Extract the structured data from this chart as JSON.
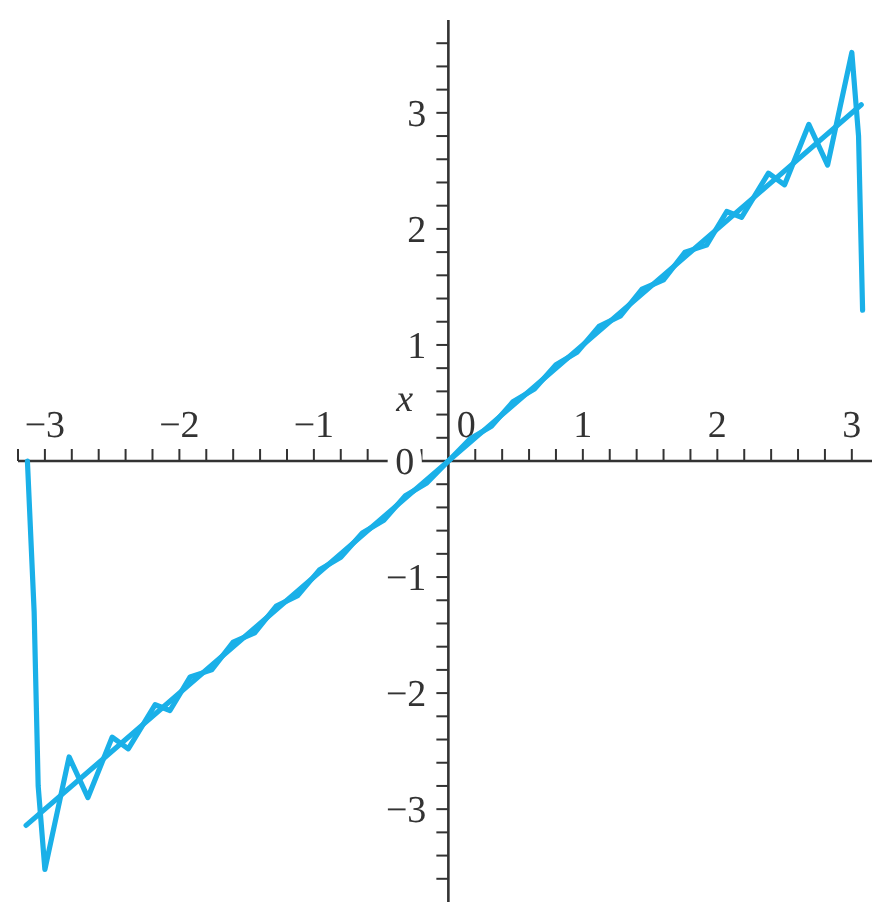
{
  "chart_data": {
    "type": "line",
    "xlabel": "x",
    "xlim": [
      -3.2,
      3.15
    ],
    "ylim": [
      -3.8,
      3.8
    ],
    "xticks": [
      {
        "value": -3.2,
        "label": null
      },
      {
        "value": -3,
        "label": "−3"
      },
      {
        "value": -2.8,
        "label": null
      },
      {
        "value": -2.6,
        "label": null
      },
      {
        "value": -2.4,
        "label": null
      },
      {
        "value": -2.2,
        "label": null
      },
      {
        "value": -2,
        "label": "−2"
      },
      {
        "value": -1.8,
        "label": null
      },
      {
        "value": -1.6,
        "label": null
      },
      {
        "value": -1.4,
        "label": null
      },
      {
        "value": -1.2,
        "label": null
      },
      {
        "value": -1,
        "label": "−1"
      },
      {
        "value": -0.8,
        "label": null
      },
      {
        "value": -0.6,
        "label": null
      },
      {
        "value": -0.4,
        "label": null
      },
      {
        "value": -0.2,
        "label": null
      },
      0,
      {
        "value": 0.2,
        "label": null
      },
      {
        "value": 0.4,
        "label": null
      },
      {
        "value": 0.6,
        "label": null
      },
      {
        "value": 0.8,
        "label": null
      },
      1,
      {
        "value": 1.2,
        "label": null
      },
      {
        "value": 1.4,
        "label": null
      },
      {
        "value": 1.6,
        "label": null
      },
      {
        "value": 1.8,
        "label": null
      },
      2,
      {
        "value": 2.2,
        "label": null
      },
      {
        "value": 2.4,
        "label": null
      },
      {
        "value": 2.6,
        "label": null
      },
      {
        "value": 2.8,
        "label": null
      },
      3
    ],
    "yticks": [
      {
        "value": -3.6,
        "label": null
      },
      {
        "value": -3.4,
        "label": null
      },
      {
        "value": -3.2,
        "label": null
      },
      {
        "value": -3,
        "label": "−3"
      },
      {
        "value": -2.8,
        "label": null
      },
      {
        "value": -2.6,
        "label": null
      },
      {
        "value": -2.4,
        "label": null
      },
      {
        "value": -2.2,
        "label": null
      },
      {
        "value": -2,
        "label": "−2"
      },
      {
        "value": -1.8,
        "label": null
      },
      {
        "value": -1.6,
        "label": null
      },
      {
        "value": -1.4,
        "label": null
      },
      {
        "value": -1.2,
        "label": null
      },
      {
        "value": -1,
        "label": "−1"
      },
      {
        "value": -0.8,
        "label": null
      },
      {
        "value": -0.6,
        "label": null
      },
      {
        "value": -0.4,
        "label": null
      },
      {
        "value": -0.2,
        "label": null
      },
      0,
      {
        "value": 0.2,
        "label": null
      },
      {
        "value": 0.4,
        "label": null
      },
      {
        "value": 0.6,
        "label": null
      },
      {
        "value": 0.8,
        "label": null
      },
      1,
      {
        "value": 1.2,
        "label": null
      },
      {
        "value": 1.4,
        "label": null
      },
      {
        "value": 1.6,
        "label": null
      },
      {
        "value": 1.8,
        "label": null
      },
      2,
      {
        "value": 2.2,
        "label": null
      },
      {
        "value": 2.4,
        "label": null
      },
      {
        "value": 2.6,
        "label": null
      },
      {
        "value": 2.8,
        "label": null
      },
      3,
      {
        "value": 3.2,
        "label": null
      },
      {
        "value": 3.4,
        "label": null
      },
      {
        "value": 3.6,
        "label": null
      }
    ],
    "grid": false,
    "marker": "none",
    "line_style": "solid",
    "series": [
      {
        "color": "#1ab0e8",
        "x": [
          -3.13,
          -3.08,
          -3.05,
          -3.0,
          -2.82,
          -2.68,
          -2.5,
          -2.38,
          -2.18,
          -2.07,
          -1.92,
          -1.76,
          -1.6,
          -1.44,
          -1.28,
          -1.12,
          -0.96,
          -0.8,
          -0.64,
          -0.48,
          -0.32,
          -0.16,
          0,
          0.16,
          0.32,
          0.48,
          0.64,
          0.8,
          0.96,
          1.12,
          1.28,
          1.44,
          1.6,
          1.76,
          1.92,
          2.07,
          2.18,
          2.38,
          2.5,
          2.68,
          2.82,
          3.0,
          3.05,
          3.08
        ],
        "values": [
          0,
          -1.3,
          -2.8,
          -3.52,
          -2.55,
          -2.9,
          -2.38,
          -2.48,
          -2.1,
          -2.15,
          -1.86,
          -1.8,
          -1.56,
          -1.48,
          -1.25,
          -1.16,
          -0.94,
          -0.83,
          -0.62,
          -0.51,
          -0.3,
          -0.19,
          0,
          0.19,
          0.3,
          0.51,
          0.62,
          0.83,
          0.94,
          1.16,
          1.25,
          1.48,
          1.56,
          1.8,
          1.86,
          2.15,
          2.1,
          2.48,
          2.38,
          2.9,
          2.55,
          3.52,
          2.8,
          1.3
        ]
      },
      {
        "color": "#1ab0e8",
        "x": [
          -3.14,
          3.07
        ],
        "values": [
          -3.14,
          3.07
        ]
      }
    ]
  }
}
